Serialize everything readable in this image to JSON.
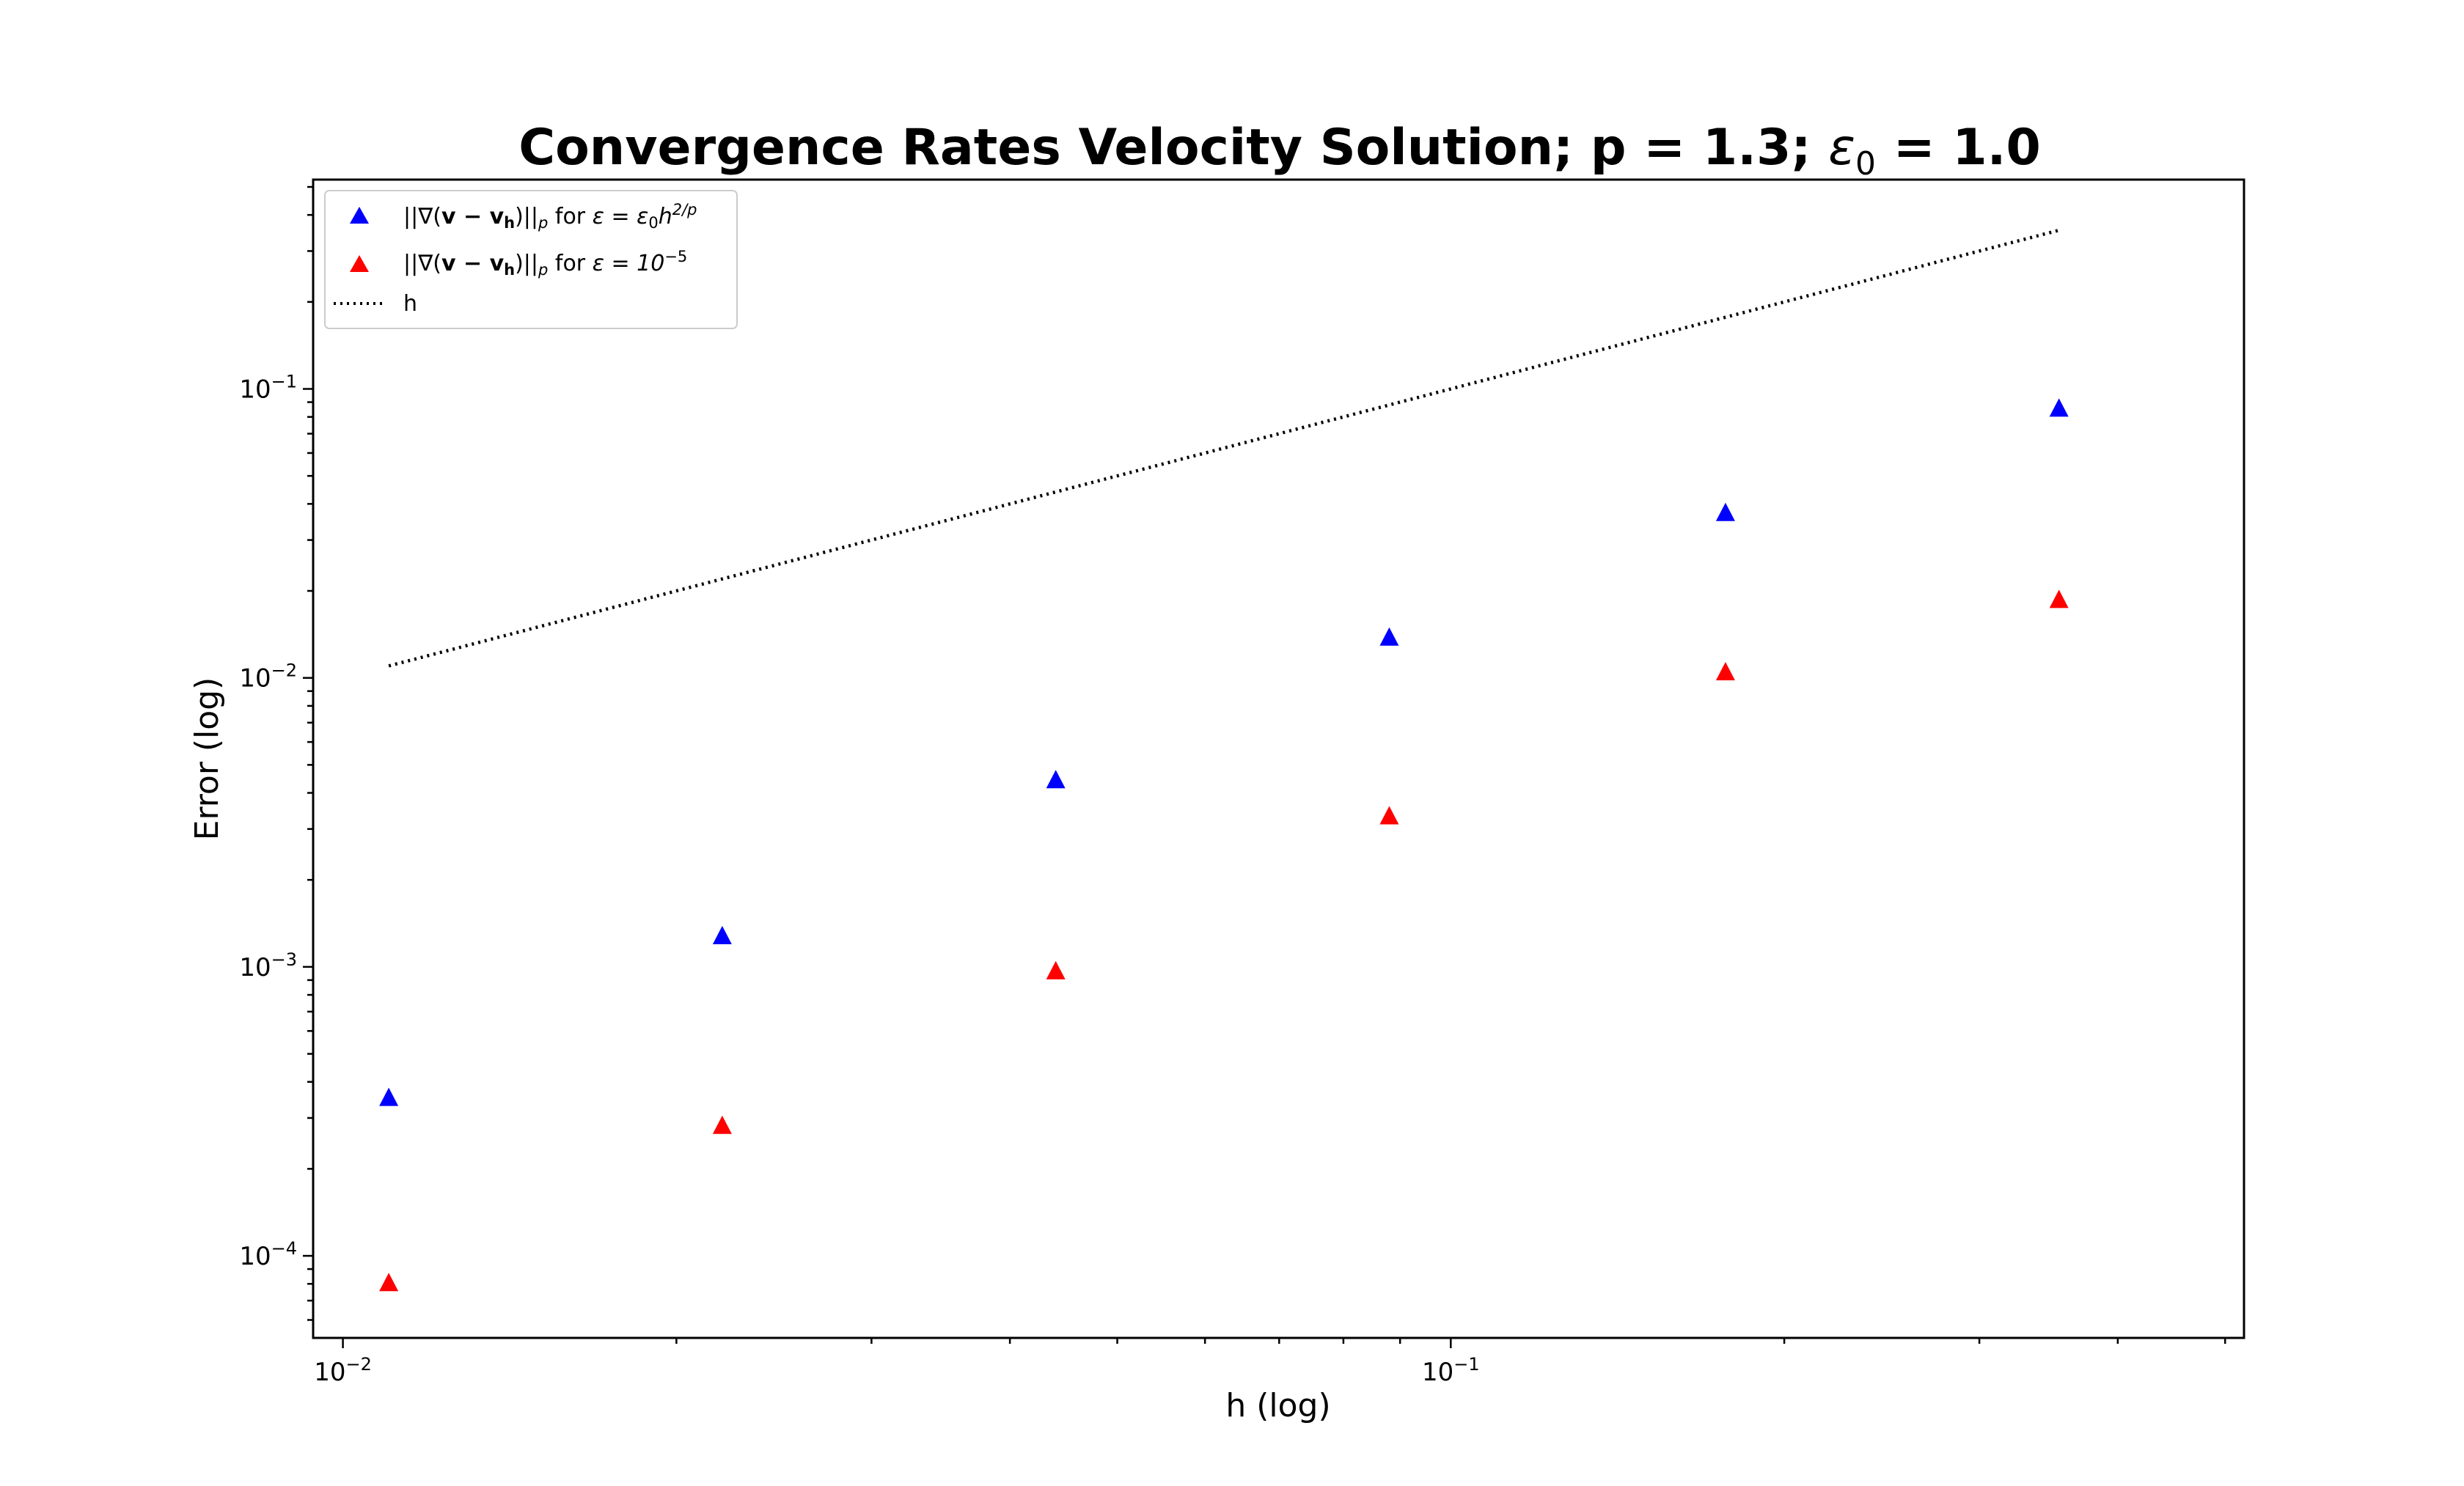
{
  "chart_data": {
    "type": "scatter",
    "title": {
      "prefix": "Convergence Rates Velocity Solution; p = 1.3; ",
      "math_symbol": "ε",
      "math_sub": "0",
      "math_suffix": " = 1.0"
    },
    "xlabel": "h (log)",
    "ylabel": "Error (log)",
    "x_scale": "log",
    "y_scale": "log",
    "xlim": [
      0.0094,
      0.52
    ],
    "ylim": [
      5.2e-05,
      0.53
    ],
    "grid": false,
    "legend_position": "top-left",
    "x_ticks": [
      {
        "base": "10",
        "exp": "−2",
        "value": 0.01
      },
      {
        "base": "10",
        "exp": "−1",
        "value": 0.1
      }
    ],
    "y_ticks": [
      {
        "base": "10",
        "exp": "−4",
        "value": 0.0001
      },
      {
        "base": "10",
        "exp": "−3",
        "value": 0.001
      },
      {
        "base": "10",
        "exp": "−2",
        "value": 0.01
      },
      {
        "base": "10",
        "exp": "−1",
        "value": 0.1
      }
    ],
    "x": [
      0.011,
      0.022,
      0.044,
      0.088,
      0.177,
      0.354
    ],
    "series": [
      {
        "legend_label": {
          "norm": "||∇(",
          "bold": "v − v",
          "bold_sub": "h",
          "close": ")||",
          "sub_p": "p",
          "for_text": " for ",
          "eq": "ε = ε",
          "eq_sub": "0",
          "h": "h",
          "sup": "2/p"
        },
        "color": "#0000ff",
        "marker": "triangle",
        "values": [
          0.00035,
          0.00127,
          0.0044,
          0.0137,
          0.037,
          0.085
        ]
      },
      {
        "legend_label": {
          "norm": "||∇(",
          "bold": "v − v",
          "bold_sub": "h",
          "close": ")||",
          "sub_p": "p",
          "for_text": " for ",
          "eq": "ε = 10",
          "sup": "−5"
        },
        "color": "#ff0000",
        "marker": "triangle",
        "values": [
          8e-05,
          0.00028,
          0.00096,
          0.0033,
          0.0104,
          0.0185
        ]
      },
      {
        "name": "h",
        "color": "#000000",
        "style": "dotted",
        "x": [
          0.011,
          0.354
        ],
        "values": [
          0.011,
          0.354
        ]
      }
    ]
  }
}
